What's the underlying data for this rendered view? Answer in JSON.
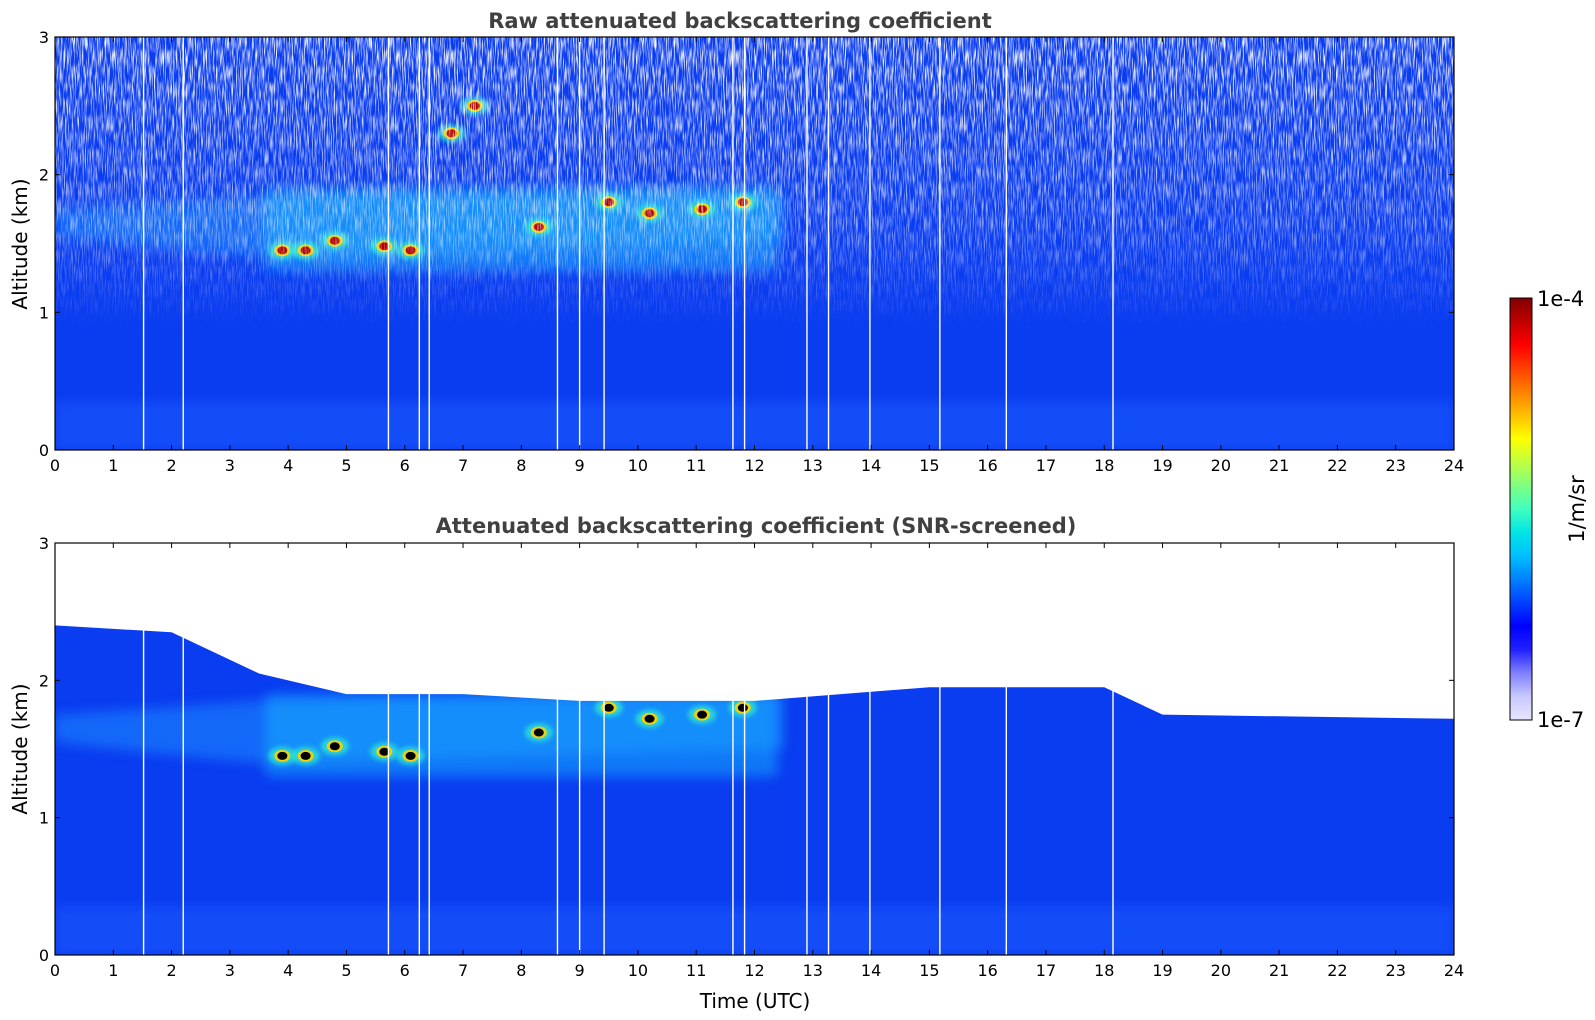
{
  "chart_data": [
    {
      "type": "heatmap",
      "title": "Raw attenuated backscattering coefficient",
      "xlabel": "",
      "ylabel": "Altitude (km)",
      "xlim": [
        0,
        24
      ],
      "ylim": [
        0,
        3
      ],
      "x_ticks": [
        "0",
        "1",
        "2",
        "3",
        "4",
        "5",
        "6",
        "7",
        "8",
        "9",
        "10",
        "11",
        "12",
        "13",
        "14",
        "15",
        "16",
        "17",
        "18",
        "19",
        "20",
        "21",
        "22",
        "23",
        "24"
      ],
      "y_ticks": [
        "0",
        "1",
        "2",
        "3"
      ],
      "gap_times_utc": [
        1.52,
        2.2,
        5.72,
        6.25,
        6.42,
        8.62,
        9.0,
        9.42,
        11.63,
        11.83,
        12.9,
        13.27,
        13.98,
        15.18,
        16.32,
        18.15
      ],
      "features": [
        {
          "kind": "aerosol_layer",
          "x_start": 3.6,
          "x_end": 12.4,
          "y_bottom": 1.3,
          "y_top": 1.9
        },
        {
          "kind": "cloud",
          "x": 3.9,
          "y": 1.45
        },
        {
          "kind": "cloud",
          "x": 4.3,
          "y": 1.45
        },
        {
          "kind": "cloud",
          "x": 4.8,
          "y": 1.52
        },
        {
          "kind": "cloud",
          "x": 5.65,
          "y": 1.48
        },
        {
          "kind": "cloud",
          "x": 6.1,
          "y": 1.45
        },
        {
          "kind": "cloud",
          "x": 6.8,
          "y": 2.3
        },
        {
          "kind": "cloud",
          "x": 7.2,
          "y": 2.5
        },
        {
          "kind": "cloud",
          "x": 8.3,
          "y": 1.62
        },
        {
          "kind": "cloud",
          "x": 9.5,
          "y": 1.8
        },
        {
          "kind": "cloud",
          "x": 10.2,
          "y": 1.72
        },
        {
          "kind": "cloud",
          "x": 11.1,
          "y": 1.75
        },
        {
          "kind": "cloud",
          "x": 11.8,
          "y": 1.8
        }
      ]
    },
    {
      "type": "heatmap",
      "title": "Attenuated backscattering coefficient (SNR-screened)",
      "xlabel": "Time (UTC)",
      "ylabel": "Altitude (km)",
      "xlim": [
        0,
        24
      ],
      "ylim": [
        0,
        3
      ],
      "x_ticks": [
        "0",
        "1",
        "2",
        "3",
        "4",
        "5",
        "6",
        "7",
        "8",
        "9",
        "10",
        "11",
        "12",
        "13",
        "14",
        "15",
        "16",
        "17",
        "18",
        "19",
        "20",
        "21",
        "22",
        "23",
        "24"
      ],
      "y_ticks": [
        "0",
        "1",
        "2",
        "3"
      ],
      "screen_top_profile": [
        [
          0,
          2.4
        ],
        [
          2,
          2.35
        ],
        [
          3.5,
          2.05
        ],
        [
          5,
          1.9
        ],
        [
          7,
          1.9
        ],
        [
          9,
          1.85
        ],
        [
          12,
          1.85
        ],
        [
          15,
          1.95
        ],
        [
          18,
          1.95
        ],
        [
          19,
          1.75
        ],
        [
          24,
          1.72
        ]
      ]
    }
  ],
  "colorbar": {
    "label": "1/m/sr",
    "min_label": "1e-7",
    "max_label": "1e-4",
    "colors": [
      "#e6e6ff",
      "#c8c8ff",
      "#8080ff",
      "#2020ff",
      "#0000ff",
      "#0040ff",
      "#0080ff",
      "#00c0ff",
      "#00e5e5",
      "#40ffbf",
      "#80ff80",
      "#c0ff40",
      "#ffff00",
      "#ffc000",
      "#ff8000",
      "#ff4000",
      "#ff0000",
      "#c00000",
      "#800000"
    ]
  }
}
